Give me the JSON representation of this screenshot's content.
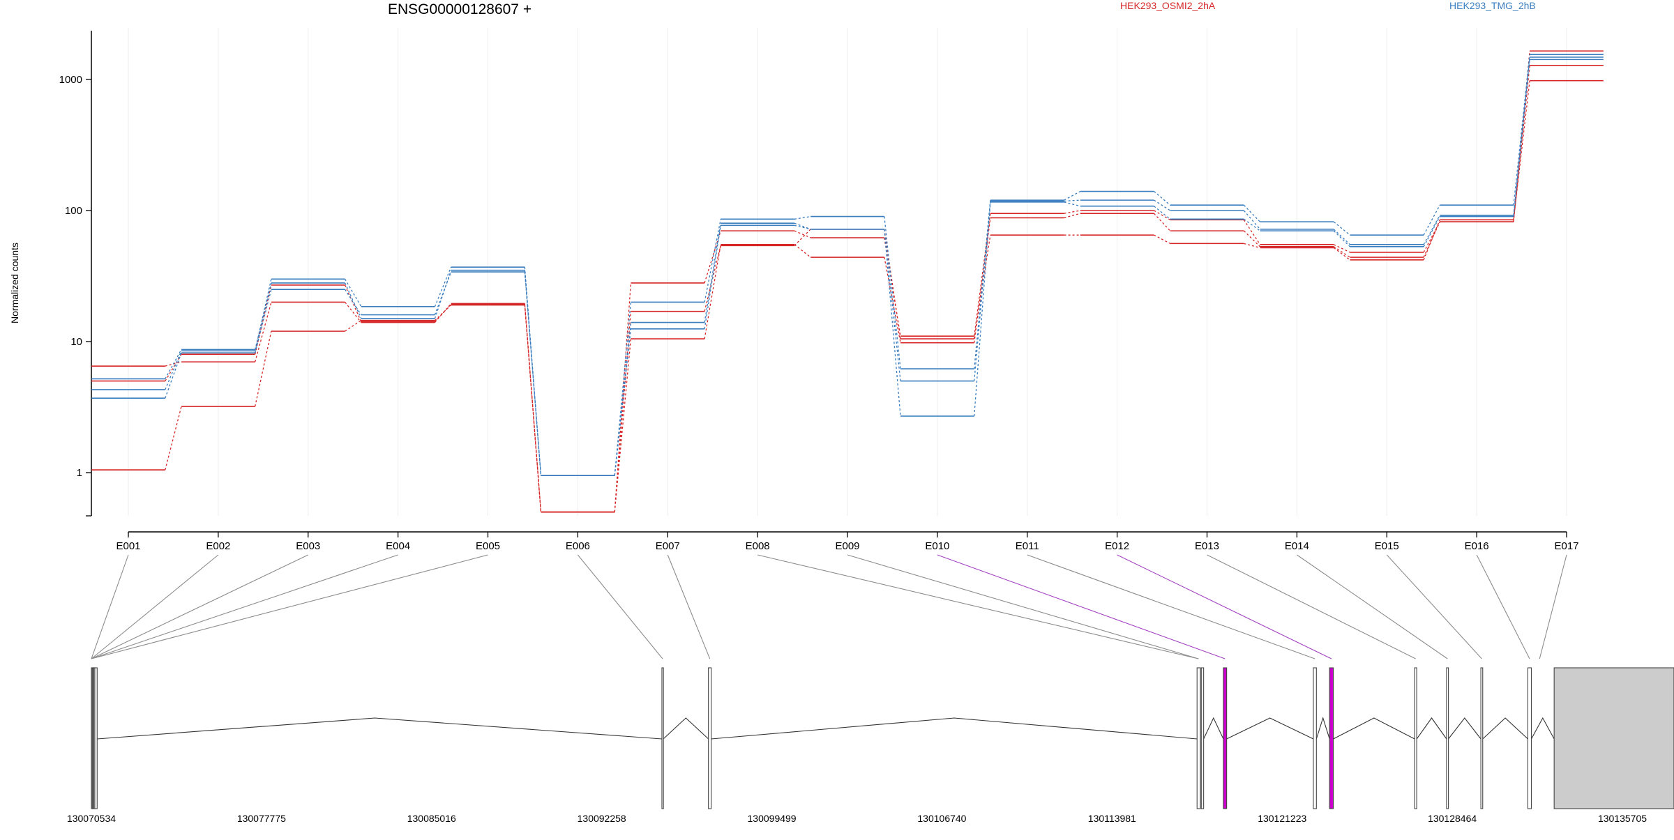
{
  "chart_data": {
    "type": "line",
    "title": "ENSG00000128607 +",
    "ylabel": "Normalized counts",
    "yscale": "log",
    "ylim": [
      0.5,
      2200
    ],
    "yticks": [
      "1",
      "10",
      "100",
      "1000"
    ],
    "legend_placement": "top",
    "exons": [
      "E001",
      "E002",
      "E003",
      "E004",
      "E005",
      "E006",
      "E007",
      "E008",
      "E009",
      "E010",
      "E011",
      "E012",
      "E013",
      "E014",
      "E015",
      "E016",
      "E017"
    ],
    "series": [
      {
        "name": "HEK293_OSMI2_2hA",
        "color": "#d62728",
        "values": [
          6.5,
          7.0,
          20,
          14.0,
          19.5,
          0.5,
          28,
          70,
          62,
          11.0,
          95,
          100,
          85,
          55,
          48,
          82,
          1650
        ]
      },
      {
        "name": "",
        "color": "#d62728",
        "values": [
          1.05,
          3.2,
          12,
          14.5,
          19.0,
          0.5,
          10.5,
          55,
          44,
          9.8,
          88,
          95,
          70,
          53,
          44,
          82,
          1280
        ]
      },
      {
        "name": "",
        "color": "#d62728",
        "values": [
          5.0,
          8.0,
          27,
          14.2,
          19.2,
          0.5,
          17,
          54,
          72,
          10.5,
          65,
          65,
          56,
          52,
          42,
          85,
          980
        ]
      },
      {
        "name": "HEK293_TMG_2hB",
        "color": "#3a7ebf",
        "values": [
          4.3,
          8.5,
          30,
          18.5,
          37,
          0.95,
          20,
          86,
          90,
          6.2,
          120,
          140,
          110,
          82,
          65,
          110,
          1550
        ]
      },
      {
        "name": "",
        "color": "#3a7ebf",
        "values": [
          3.7,
          8.2,
          25,
          16,
          34,
          0.95,
          14,
          80,
          72,
          5.0,
          118,
          120,
          100,
          72,
          55,
          92,
          1480
        ]
      },
      {
        "name": "",
        "color": "#3a7ebf",
        "values": [
          5.2,
          8.7,
          28,
          15,
          35,
          0.95,
          12.5,
          77,
          72,
          2.7,
          116,
          108,
          86,
          70,
          53,
          90,
          1420
        ]
      }
    ],
    "purple_exons": [
      "E010",
      "E012"
    ],
    "genomic_start": 130070534,
    "genomic_end": 130135705,
    "genomic_ticks": [
      130070534,
      130077775,
      130085016,
      130092258,
      130099499,
      130106740,
      130113981,
      130121223,
      130128464,
      130135705
    ],
    "gene_model": {
      "exons": [
        [
          130070534,
          130070560
        ],
        [
          130070570,
          130070600
        ],
        [
          130070600,
          130070640
        ],
        [
          130070640,
          130070680
        ],
        [
          130070680,
          130070780
        ],
        [
          130094820,
          130094880
        ],
        [
          130096800,
          130096920
        ],
        [
          130117600,
          130117740
        ],
        [
          130117780,
          130117880
        ],
        [
          130118720,
          130118860
        ],
        [
          130122550,
          130122680
        ],
        [
          130123240,
          130123400
        ],
        [
          130126860,
          130126950
        ],
        [
          130128220,
          130128300
        ],
        [
          130129680,
          130129760
        ],
        [
          130131680,
          130131830
        ],
        [
          130132800,
          130137900
        ]
      ],
      "junction_apex": [
        [
          130070780,
          130094820,
          130082600
        ],
        [
          130094880,
          130096800,
          130095840
        ],
        [
          130096920,
          130117600,
          130107260
        ],
        [
          130117880,
          130118720,
          130118300
        ],
        [
          130118860,
          130122550,
          130120700
        ],
        [
          130122680,
          130123240,
          130122960
        ],
        [
          130123400,
          130126860,
          130125130
        ],
        [
          130126950,
          130128220,
          130127585
        ],
        [
          130128300,
          130129680,
          130128990
        ],
        [
          130129760,
          130131680,
          130130720
        ],
        [
          130131830,
          130132800,
          130132315
        ]
      ]
    }
  },
  "colors": {
    "red": "#d62728",
    "blue": "#3a7ebf",
    "purple": "#cc00cc",
    "exon_gray": "#cccccc"
  }
}
